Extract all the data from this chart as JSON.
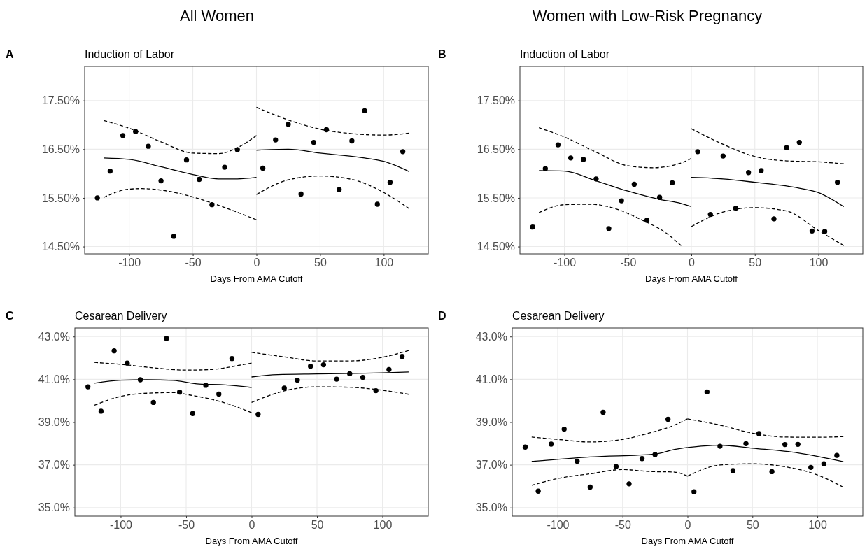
{
  "chart_data": [
    {
      "type": "scatter",
      "title": "All Women",
      "subtitle": "Induction of Labor",
      "xlabel": "Days From AMA Cutoff",
      "annotations": [
        "A"
      ],
      "grid": true,
      "xlim": [
        -135,
        135
      ],
      "xticks": [
        -100,
        -50,
        0,
        50,
        100
      ],
      "ylim": [
        14.35,
        18.2
      ],
      "yticks": [
        {
          "value": 14.5,
          "label": "14.50%"
        },
        {
          "value": 15.5,
          "label": "15.50%"
        },
        {
          "value": 16.5,
          "label": "16.50%"
        },
        {
          "value": 17.5,
          "label": "17.50%"
        }
      ],
      "series": [
        {
          "marker": "circle",
          "color": "#000000",
          "x": [
            -125,
            -115,
            -105,
            -95,
            -85,
            -75,
            -65,
            -55,
            -45,
            -35,
            -25,
            -15,
            5,
            15,
            25,
            35,
            45,
            55,
            65,
            75,
            85,
            95,
            105,
            115
          ],
          "values": [
            15.5,
            16.05,
            16.78,
            16.86,
            16.56,
            15.85,
            14.71,
            16.28,
            15.88,
            15.36,
            16.13,
            16.49,
            16.11,
            16.69,
            17.01,
            15.58,
            16.64,
            16.9,
            15.67,
            16.67,
            17.29,
            15.37,
            15.82,
            16.45
          ]
        },
        {
          "type": "line",
          "line_style": "solid",
          "color": "#000000",
          "x": [
            -120,
            -100,
            -75,
            -50,
            -30,
            -15,
            0
          ],
          "values": [
            16.32,
            16.29,
            16.14,
            15.98,
            15.89,
            15.89,
            15.92
          ]
        },
        {
          "type": "line",
          "line_style": "dashed",
          "color": "#000000",
          "x": [
            -120,
            -100,
            -75,
            -50,
            -30,
            -15,
            0
          ],
          "values": [
            17.09,
            16.93,
            16.65,
            16.42,
            16.41,
            16.53,
            16.78
          ]
        },
        {
          "type": "line",
          "line_style": "dashed",
          "color": "#000000",
          "x": [
            -120,
            -100,
            -90,
            -75,
            -50,
            -30,
            0
          ],
          "values": [
            15.51,
            15.68,
            15.69,
            15.66,
            15.52,
            15.35,
            15.05
          ]
        },
        {
          "type": "line",
          "line_style": "solid",
          "color": "#000000",
          "x": [
            0,
            25,
            50,
            85,
            100,
            120
          ],
          "values": [
            16.48,
            16.5,
            16.42,
            16.32,
            16.25,
            16.04
          ]
        },
        {
          "type": "line",
          "line_style": "dashed",
          "color": "#000000",
          "x": [
            0,
            25,
            50,
            75,
            100,
            120
          ],
          "values": [
            17.36,
            17.1,
            16.91,
            16.82,
            16.79,
            16.83
          ]
        },
        {
          "type": "line",
          "line_style": "dashed",
          "color": "#000000",
          "x": [
            0,
            25,
            50,
            75,
            100,
            120
          ],
          "values": [
            15.57,
            15.87,
            15.95,
            15.88,
            15.61,
            15.28
          ]
        }
      ]
    },
    {
      "type": "scatter",
      "title": "Women with Low-Risk Pregnancy",
      "subtitle": "Induction of Labor",
      "xlabel": "Days From AMA Cutoff",
      "annotations": [
        "B"
      ],
      "grid": true,
      "xlim": [
        -135,
        135
      ],
      "xticks": [
        -100,
        -50,
        0,
        50,
        100
      ],
      "ylim": [
        14.35,
        18.2
      ],
      "yticks": [
        {
          "value": 14.5,
          "label": "14.50%"
        },
        {
          "value": 15.5,
          "label": "15.50%"
        },
        {
          "value": 16.5,
          "label": "16.50%"
        },
        {
          "value": 17.5,
          "label": "17.50%"
        }
      ],
      "series": [
        {
          "marker": "circle",
          "color": "#000000",
          "x": [
            -125,
            -115,
            -105,
            -95,
            -85,
            -75,
            -65,
            -55,
            -45,
            -35,
            -25,
            -15,
            5,
            15,
            25,
            35,
            45,
            55,
            65,
            75,
            85,
            95,
            105,
            115
          ],
          "values": [
            14.9,
            16.1,
            16.59,
            16.32,
            16.29,
            15.89,
            14.87,
            15.44,
            15.78,
            15.04,
            15.51,
            15.81,
            16.45,
            15.16,
            16.36,
            15.29,
            16.02,
            16.06,
            15.07,
            16.53,
            16.64,
            14.82,
            14.81,
            15.82
          ]
        },
        {
          "type": "line",
          "line_style": "solid",
          "color": "#000000",
          "x": [
            -120,
            -100,
            -75,
            -50,
            -25,
            -10,
            0
          ],
          "values": [
            16.06,
            16.05,
            15.85,
            15.64,
            15.47,
            15.4,
            15.32
          ]
        },
        {
          "type": "line",
          "line_style": "dashed",
          "color": "#000000",
          "x": [
            -120,
            -100,
            -75,
            -50,
            -30,
            -10,
            0
          ],
          "values": [
            16.94,
            16.75,
            16.44,
            16.16,
            16.12,
            16.2,
            16.31
          ]
        },
        {
          "type": "line",
          "line_style": "dashed",
          "color": "#000000",
          "x": [
            -120,
            -100,
            -80,
            -60,
            -40,
            -20,
            -8
          ],
          "values": [
            15.2,
            15.36,
            15.37,
            15.28,
            15.06,
            14.78,
            14.52
          ]
        },
        {
          "type": "line",
          "line_style": "solid",
          "color": "#000000",
          "x": [
            0,
            25,
            50,
            85,
            100,
            120
          ],
          "values": [
            15.92,
            15.89,
            15.82,
            15.7,
            15.61,
            15.32
          ]
        },
        {
          "type": "line",
          "line_style": "dashed",
          "color": "#000000",
          "x": [
            0,
            25,
            50,
            75,
            100,
            120
          ],
          "values": [
            16.92,
            16.6,
            16.35,
            16.26,
            16.24,
            16.2
          ]
        },
        {
          "type": "line",
          "line_style": "dashed",
          "color": "#000000",
          "x": [
            0,
            25,
            50,
            75,
            100,
            120
          ],
          "values": [
            14.91,
            15.21,
            15.3,
            15.23,
            14.83,
            14.52
          ]
        }
      ]
    },
    {
      "type": "scatter",
      "title": "Cesarean Delivery",
      "xlabel": "Days From AMA Cutoff",
      "annotations": [
        "C"
      ],
      "grid": true,
      "xlim": [
        -135,
        135
      ],
      "xticks": [
        -100,
        -50,
        0,
        50,
        100
      ],
      "ylim": [
        34.6,
        43.4
      ],
      "yticks": [
        {
          "value": 35,
          "label": "35.0%"
        },
        {
          "value": 37,
          "label": "37.0%"
        },
        {
          "value": 39,
          "label": "39.0%"
        },
        {
          "value": 41,
          "label": "41.0%"
        },
        {
          "value": 43,
          "label": "43.0%"
        }
      ],
      "series": [
        {
          "marker": "circle",
          "color": "#000000",
          "x": [
            -125,
            -115,
            -105,
            -95,
            -85,
            -75,
            -65,
            -55,
            -45,
            -35,
            -25,
            -15,
            5,
            25,
            35,
            45,
            55,
            65,
            75,
            85,
            95,
            105,
            115
          ],
          "values": [
            40.65,
            39.51,
            42.33,
            41.76,
            40.98,
            39.92,
            42.91,
            40.4,
            39.4,
            40.72,
            40.31,
            41.97,
            39.36,
            40.59,
            40.96,
            41.61,
            41.68,
            41.01,
            41.26,
            41.09,
            40.47,
            41.46,
            42.07
          ]
        },
        {
          "type": "line",
          "line_style": "solid",
          "color": "#000000",
          "x": [
            -120,
            -100,
            -80,
            -60,
            -40,
            -20,
            0
          ],
          "values": [
            40.82,
            40.96,
            40.98,
            40.95,
            40.78,
            40.74,
            40.62
          ]
        },
        {
          "type": "line",
          "line_style": "dashed",
          "color": "#000000",
          "x": [
            -120,
            -100,
            -75,
            -50,
            -30,
            -10,
            0
          ],
          "values": [
            41.79,
            41.7,
            41.54,
            41.43,
            41.46,
            41.65,
            41.76
          ]
        },
        {
          "type": "line",
          "line_style": "dashed",
          "color": "#000000",
          "x": [
            -120,
            -100,
            -80,
            -60,
            -45,
            -30,
            -15,
            0
          ],
          "values": [
            39.79,
            40.2,
            40.35,
            40.38,
            40.24,
            40.06,
            39.79,
            39.44
          ]
        },
        {
          "type": "line",
          "line_style": "solid",
          "color": "#000000",
          "x": [
            0,
            20,
            50,
            80,
            100,
            120
          ],
          "values": [
            41.11,
            41.22,
            41.25,
            41.28,
            41.3,
            41.34
          ]
        },
        {
          "type": "line",
          "line_style": "dashed",
          "color": "#000000",
          "x": [
            0,
            25,
            50,
            75,
            100,
            120
          ],
          "values": [
            42.26,
            42.05,
            41.86,
            41.86,
            42.03,
            42.35
          ]
        },
        {
          "type": "line",
          "line_style": "dashed",
          "color": "#000000",
          "x": [
            0,
            25,
            50,
            75,
            100,
            120
          ],
          "values": [
            39.92,
            40.46,
            40.65,
            40.63,
            40.49,
            40.3
          ]
        }
      ]
    },
    {
      "type": "scatter",
      "title": "Cesarean Delivery",
      "xlabel": "Days From AMA Cutoff",
      "annotations": [
        "D"
      ],
      "grid": true,
      "xlim": [
        -135,
        135
      ],
      "xticks": [
        -100,
        -50,
        0,
        50,
        100
      ],
      "ylim": [
        34.6,
        43.4
      ],
      "yticks": [
        {
          "value": 35,
          "label": "35.0%"
        },
        {
          "value": 37,
          "label": "37.0%"
        },
        {
          "value": 39,
          "label": "39.0%"
        },
        {
          "value": 41,
          "label": "41.0%"
        },
        {
          "value": 43,
          "label": "43.0%"
        }
      ],
      "series": [
        {
          "marker": "circle",
          "color": "#000000",
          "x": [
            -125,
            -115,
            -105,
            -95,
            -85,
            -75,
            -65,
            -55,
            -45,
            -35,
            -25,
            -15,
            5,
            15,
            25,
            35,
            45,
            55,
            65,
            75,
            85,
            95,
            105,
            115
          ],
          "values": [
            37.83,
            35.77,
            37.97,
            38.67,
            37.17,
            35.96,
            39.46,
            36.92,
            36.11,
            37.29,
            37.48,
            39.13,
            35.74,
            40.41,
            37.87,
            36.73,
            37.99,
            38.46,
            36.68,
            37.95,
            37.96,
            36.88,
            37.05,
            37.44
          ]
        },
        {
          "type": "line",
          "line_style": "solid",
          "color": "#000000",
          "x": [
            -120,
            -75,
            -25,
            -10,
            0
          ],
          "values": [
            37.16,
            37.37,
            37.5,
            37.72,
            37.81
          ]
        },
        {
          "type": "line",
          "line_style": "dashed",
          "color": "#000000",
          "x": [
            -120,
            -100,
            -75,
            -50,
            -30,
            -10,
            0
          ],
          "values": [
            38.3,
            38.19,
            38.07,
            38.19,
            38.48,
            38.86,
            39.15
          ]
        },
        {
          "type": "line",
          "line_style": "dashed",
          "color": "#000000",
          "x": [
            -120,
            -100,
            -75,
            -50,
            -30,
            -10,
            0
          ],
          "values": [
            36.04,
            36.36,
            36.58,
            36.78,
            36.69,
            36.66,
            36.47
          ]
        },
        {
          "type": "line",
          "line_style": "solid",
          "color": "#000000",
          "x": [
            0,
            25,
            50,
            85,
            120
          ],
          "values": [
            37.81,
            37.92,
            37.78,
            37.56,
            37.15
          ]
        },
        {
          "type": "line",
          "line_style": "dashed",
          "color": "#000000",
          "x": [
            0,
            25,
            50,
            75,
            100,
            120
          ],
          "values": [
            39.15,
            38.86,
            38.48,
            38.3,
            38.29,
            38.32
          ]
        },
        {
          "type": "line",
          "line_style": "dashed",
          "color": "#000000",
          "x": [
            0,
            25,
            50,
            75,
            100,
            120
          ],
          "values": [
            36.47,
            36.99,
            37.05,
            36.91,
            36.53,
            35.95
          ]
        }
      ]
    }
  ]
}
